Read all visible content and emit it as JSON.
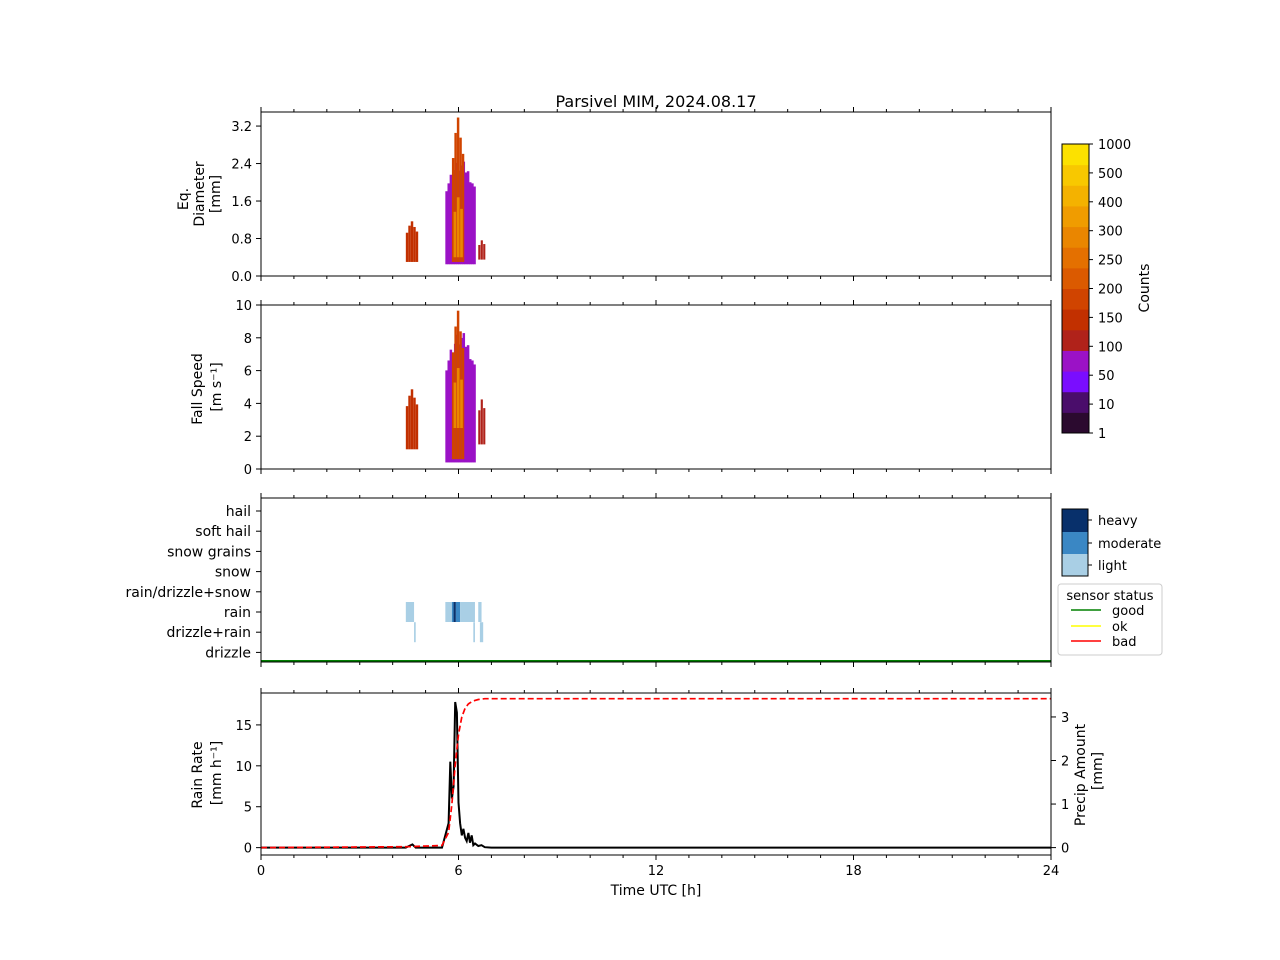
{
  "title": "Parsivel MIM, 2024.08.17",
  "xlabel": "Time UTC [h]",
  "xticks": [
    "0",
    "6",
    "12",
    "18",
    "24"
  ],
  "panels": {
    "diameter": {
      "ylabel": [
        "Eq.",
        "Diameter",
        "[mm]"
      ],
      "yticks": [
        "0.0",
        "0.8",
        "1.6",
        "2.4",
        "3.2"
      ]
    },
    "speed": {
      "ylabel": [
        "Fall Speed",
        "[m s⁻¹]"
      ],
      "yticks": [
        "0",
        "2",
        "4",
        "6",
        "8",
        "10"
      ]
    },
    "type": {
      "categories": [
        "hail",
        "soft hail",
        "snow grains",
        "snow",
        "rain/drizzle+snow",
        "rain",
        "drizzle+rain",
        "drizzle"
      ]
    },
    "rain": {
      "ylabel": [
        "Rain Rate",
        "[mm h⁻¹]"
      ],
      "yticks": [
        "0",
        "5",
        "10",
        "15"
      ],
      "ylabel2": [
        "Precip Amount",
        "[mm]"
      ],
      "yticks2": [
        "0",
        "1",
        "2",
        "3"
      ]
    }
  },
  "counts_colorbar": {
    "label": "Counts",
    "ticks": [
      "1",
      "10",
      "50",
      "100",
      "150",
      "200",
      "250",
      "300",
      "400",
      "500",
      "1000"
    ]
  },
  "intensity_legend": {
    "items": [
      "heavy",
      "moderate",
      "light"
    ],
    "colors": [
      "#08306b",
      "#3a87c4",
      "#a9cfe5"
    ]
  },
  "sensor_legend": {
    "title": "sensor status",
    "items": [
      {
        "label": "good",
        "color": "#008000"
      },
      {
        "label": "ok",
        "color": "#ffff00"
      },
      {
        "label": "bad",
        "color": "#ff0000"
      }
    ]
  },
  "chart_data": [
    {
      "type": "heatmap",
      "name": "diameter_distribution",
      "xlim": [
        0,
        24
      ],
      "ylim": [
        0,
        3.5
      ],
      "xlabel": "Time UTC [h]",
      "ylabel": "Eq. Diameter [mm]",
      "blobs": [
        {
          "t0": 4.4,
          "t1": 4.7,
          "y0": 0.3,
          "y1": 1.2,
          "level": 5
        },
        {
          "t0": 5.6,
          "t1": 6.45,
          "y0": 0.25,
          "y1": 2.5,
          "level": 3
        },
        {
          "t0": 5.8,
          "t1": 6.1,
          "y0": 0.3,
          "y1": 3.5,
          "level": 6
        },
        {
          "t0": 5.85,
          "t1": 6.05,
          "y0": 0.4,
          "y1": 1.8,
          "level": 9
        },
        {
          "t0": 6.6,
          "t1": 6.75,
          "y0": 0.35,
          "y1": 0.8,
          "level": 4
        }
      ]
    },
    {
      "type": "heatmap",
      "name": "fall_speed_distribution",
      "xlim": [
        0,
        24
      ],
      "ylim": [
        0,
        10
      ],
      "xlabel": "Time UTC [h]",
      "ylabel": "Fall Speed [m s-1]",
      "blobs": [
        {
          "t0": 4.4,
          "t1": 4.7,
          "y0": 1.2,
          "y1": 5.0,
          "level": 5
        },
        {
          "t0": 5.6,
          "t1": 6.45,
          "y0": 0.4,
          "y1": 8.5,
          "level": 3
        },
        {
          "t0": 5.8,
          "t1": 6.1,
          "y0": 0.6,
          "y1": 10.0,
          "level": 6
        },
        {
          "t0": 5.85,
          "t1": 6.05,
          "y0": 2.5,
          "y1": 6.5,
          "level": 9
        },
        {
          "t0": 6.6,
          "t1": 6.75,
          "y0": 1.5,
          "y1": 4.5,
          "level": 4
        }
      ]
    },
    {
      "type": "heatmap",
      "name": "precip_type",
      "xlim": [
        0,
        24
      ],
      "cells": [
        {
          "t0": 4.4,
          "t1": 4.65,
          "cat": "rain",
          "intensity": "light"
        },
        {
          "t0": 4.65,
          "t1": 4.7,
          "cat": "drizzle+rain",
          "intensity": "light"
        },
        {
          "t0": 5.6,
          "t1": 5.8,
          "cat": "rain",
          "intensity": "light"
        },
        {
          "t0": 5.8,
          "t1": 5.85,
          "cat": "rain",
          "intensity": "moderate"
        },
        {
          "t0": 5.85,
          "t1": 5.92,
          "cat": "rain",
          "intensity": "heavy"
        },
        {
          "t0": 5.92,
          "t1": 6.05,
          "cat": "rain",
          "intensity": "moderate"
        },
        {
          "t0": 6.05,
          "t1": 6.5,
          "cat": "rain",
          "intensity": "light"
        },
        {
          "t0": 6.45,
          "t1": 6.5,
          "cat": "drizzle+rain",
          "intensity": "light"
        },
        {
          "t0": 6.6,
          "t1": 6.7,
          "cat": "rain",
          "intensity": "light"
        },
        {
          "t0": 6.65,
          "t1": 6.75,
          "cat": "drizzle+rain",
          "intensity": "light"
        }
      ],
      "sensor_status": "good"
    },
    {
      "type": "line",
      "name": "rain",
      "xlim": [
        0,
        24
      ],
      "ylim": [
        -0.9,
        18.9
      ],
      "y2lim": [
        -0.17,
        3.55
      ],
      "series": [
        {
          "name": "rain rate",
          "color": "#000000",
          "style": "solid",
          "axis": "left",
          "x": [
            0,
            4.4,
            4.5,
            4.6,
            4.7,
            5.5,
            5.7,
            5.75,
            5.8,
            5.85,
            5.9,
            5.95,
            6.0,
            6.05,
            6.1,
            6.15,
            6.2,
            6.25,
            6.3,
            6.35,
            6.4,
            6.45,
            6.5,
            6.6,
            6.7,
            6.8,
            7.0,
            24
          ],
          "y": [
            0,
            0,
            0.2,
            0.4,
            0,
            0,
            3.0,
            10.5,
            6.0,
            7.5,
            17.8,
            16.5,
            5.5,
            3.0,
            1.5,
            2.3,
            1.2,
            0.8,
            1.8,
            0.6,
            1.5,
            0.3,
            0.5,
            0.2,
            0.3,
            0.05,
            0,
            0
          ]
        },
        {
          "name": "precip amount",
          "color": "#ff0000",
          "style": "dashed",
          "axis": "right",
          "x": [
            0,
            4.5,
            5.5,
            5.7,
            5.8,
            5.9,
            6.0,
            6.1,
            6.2,
            6.3,
            6.4,
            6.5,
            6.6,
            6.8,
            7.0,
            24
          ],
          "y": [
            0,
            0.02,
            0.05,
            0.35,
            1.0,
            1.9,
            2.6,
            3.0,
            3.2,
            3.3,
            3.35,
            3.38,
            3.4,
            3.42,
            3.42,
            3.42
          ]
        }
      ]
    }
  ]
}
